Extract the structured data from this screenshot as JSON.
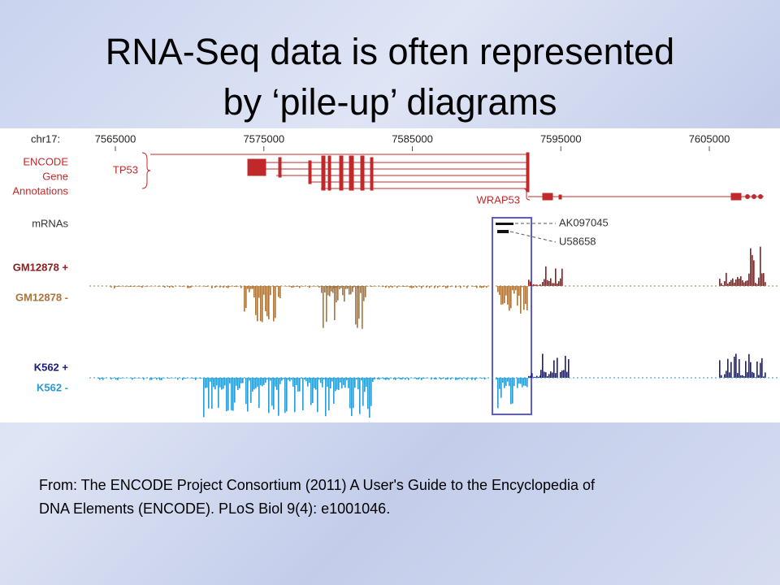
{
  "title": {
    "line1": "RNA-Seq data is often represented",
    "line2": "by ‘pile-up’ diagrams"
  },
  "browser": {
    "chrom": "chr17:",
    "ticks": [
      7565000,
      7575000,
      7585000,
      7595000,
      7605000
    ],
    "tracks": {
      "genes": {
        "line1": "ENCODE",
        "line2": "Gene",
        "line3": "Annotations",
        "tp53": "TP53",
        "wrap53": "WRAP53"
      },
      "mrnas": {
        "label": "mRNAs",
        "items": [
          "AK097045",
          "U58658"
        ]
      },
      "signals": [
        "GM12878 +",
        "GM12878 -",
        "K562 +",
        "K562 -"
      ]
    }
  },
  "citation": {
    "line1": "From: The ENCODE Project Consortium (2011) A User's Guide to the Encyclopedia of",
    "line2": "DNA Elements (ENCODE). PLoS Biol 9(4): e1001046."
  }
}
